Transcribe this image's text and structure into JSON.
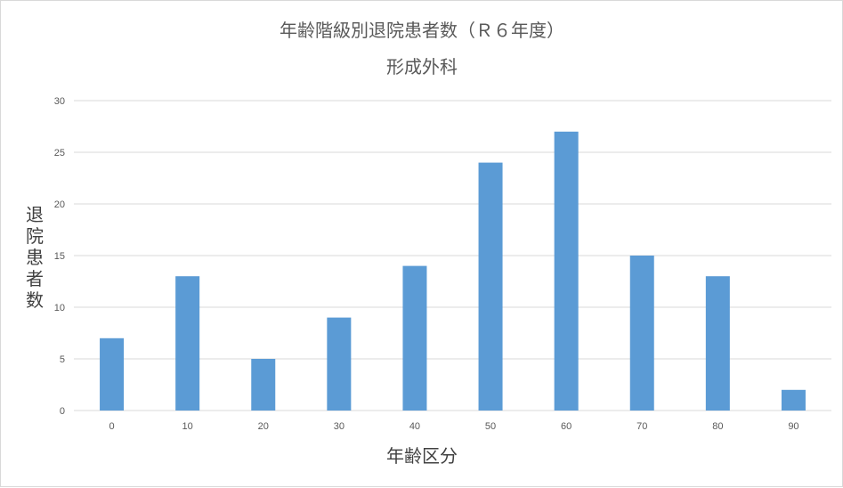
{
  "chart_data": {
    "type": "bar",
    "title": "年齢階級別退院患者数（Ｒ６年度）",
    "subtitle": "形成外科",
    "xlabel": "年齢区分",
    "ylabel": "退院患者数",
    "categories": [
      "0",
      "10",
      "20",
      "30",
      "40",
      "50",
      "60",
      "70",
      "80",
      "90"
    ],
    "values": [
      7,
      13,
      5,
      9,
      14,
      24,
      27,
      15,
      13,
      2
    ],
    "ylim": [
      0,
      30
    ],
    "yticks": [
      0,
      5,
      10,
      15,
      20,
      25,
      30
    ],
    "grid": true,
    "legend": "none",
    "bar_color": "#5b9bd5"
  }
}
